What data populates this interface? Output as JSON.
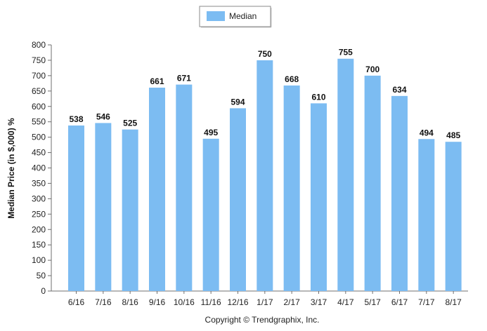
{
  "chart_data": {
    "type": "bar",
    "title": "",
    "xlabel": "",
    "ylabel": "Median Price (in $,000) %",
    "categories": [
      "6/16",
      "7/16",
      "8/16",
      "9/16",
      "10/16",
      "11/16",
      "12/16",
      "1/17",
      "2/17",
      "3/17",
      "4/17",
      "5/17",
      "6/17",
      "7/17",
      "8/17"
    ],
    "series": [
      {
        "name": "Median",
        "color": "#7cbcf2",
        "values": [
          538,
          546,
          525,
          661,
          671,
          495,
          594,
          750,
          668,
          610,
          755,
          700,
          634,
          494,
          485
        ]
      }
    ],
    "ylim": [
      0,
      800
    ],
    "yticks": [
      0,
      50,
      100,
      150,
      200,
      250,
      300,
      350,
      400,
      450,
      500,
      550,
      600,
      650,
      700,
      750,
      800
    ],
    "grid": false,
    "legend_position": "top-center",
    "data_labels": true
  },
  "footer": {
    "copyright": "Copyright © Trendgraphix, Inc."
  }
}
